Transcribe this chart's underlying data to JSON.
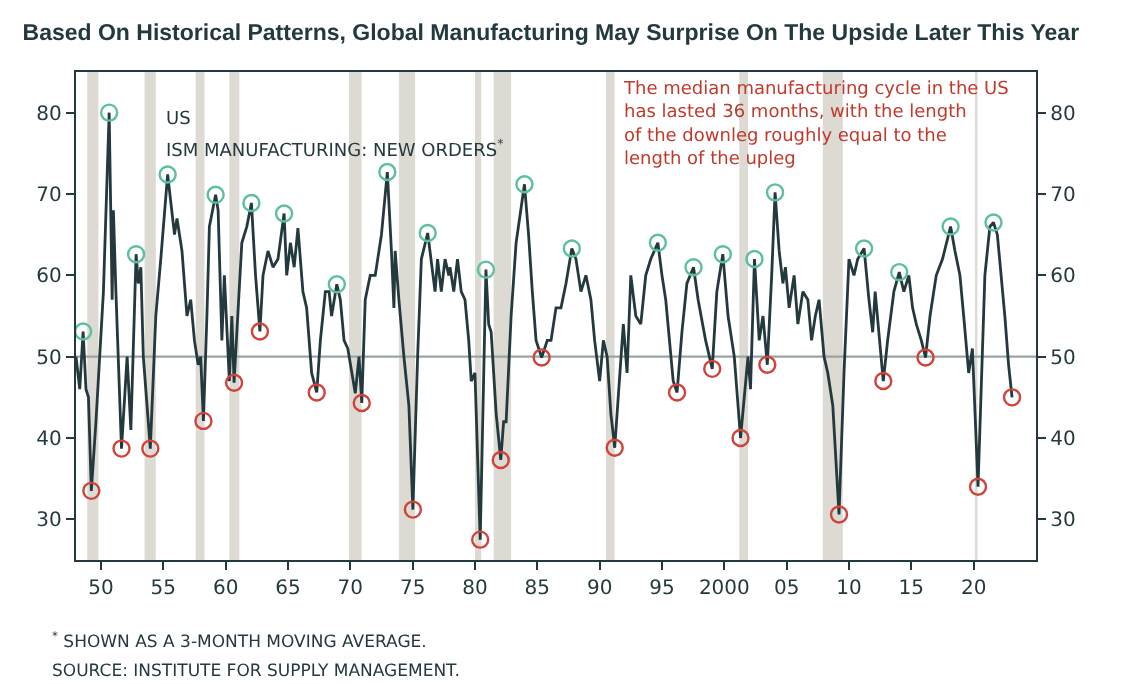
{
  "chart_data": {
    "type": "line",
    "title": "Based On Historical Patterns, Global Manufacturing May Surprise On The Upside Later This Year",
    "annotations": [
      "US",
      "ISM MANUFACTURING: NEW ORDERS$^{*}$",
      "The median manufacturing cycle in the US has lasted 36 months, with the length of the downleg roughly equal to the length of the upleg",
      "$^{*}$ SHOWN AS A 3-MONTH MOVING AVERAGE.",
      "SOURCE: INSTITUTE FOR SUPPLY MANAGEMENT."
    ],
    "xlim": [
      1948,
      2025
    ],
    "xticks": [
      {
        "value": 1950,
        "label": "50"
      },
      {
        "value": 1955,
        "label": "55"
      },
      {
        "value": 1960,
        "label": "60"
      },
      {
        "value": 1965,
        "label": "65"
      },
      {
        "value": 1970,
        "label": "70"
      },
      {
        "value": 1975,
        "label": "75"
      },
      {
        "value": 1980,
        "label": "80"
      },
      {
        "value": 1985,
        "label": "85"
      },
      {
        "value": 1990,
        "label": "90"
      },
      {
        "value": 1995,
        "label": "95"
      },
      2000,
      {
        "value": 2005,
        "label": "05"
      },
      {
        "value": 2010,
        "label": "10"
      },
      {
        "value": 2015,
        "label": "15"
      },
      {
        "value": 2020,
        "label": "20"
      }
    ],
    "ylim": [
      25,
      85
    ],
    "yticks": [
      30,
      40,
      50,
      60,
      70,
      80
    ],
    "y2lim": [
      25,
      85
    ],
    "y2ticks": [
      30,
      40,
      50,
      60,
      70,
      80
    ],
    "grid": false,
    "ref_lines": [
      {
        "axis": "y",
        "value": 50,
        "color": "#9aa5a5"
      }
    ],
    "bands": [
      {
        "axis": "x",
        "from": 1948.9,
        "to": 1949.8,
        "color": "#dcdad2"
      },
      {
        "axis": "x",
        "from": 1953.5,
        "to": 1954.4,
        "color": "#dcdad2"
      },
      {
        "axis": "x",
        "from": 1957.6,
        "to": 1958.3,
        "color": "#dcdad2"
      },
      {
        "axis": "x",
        "from": 1960.3,
        "to": 1961.1,
        "color": "#dcdad2"
      },
      {
        "axis": "x",
        "from": 1969.9,
        "to": 1970.9,
        "color": "#dcdad2"
      },
      {
        "axis": "x",
        "from": 1973.9,
        "to": 1975.2,
        "color": "#dcdad2"
      },
      {
        "axis": "x",
        "from": 1980.0,
        "to": 1980.5,
        "color": "#dcdad2"
      },
      {
        "axis": "x",
        "from": 1981.5,
        "to": 1982.9,
        "color": "#dcdad2"
      },
      {
        "axis": "x",
        "from": 1990.5,
        "to": 1991.2,
        "color": "#dcdad2"
      },
      {
        "axis": "x",
        "from": 2001.2,
        "to": 2001.9,
        "color": "#dcdad2"
      },
      {
        "axis": "x",
        "from": 2007.9,
        "to": 2009.5,
        "color": "#dcdad2"
      },
      {
        "axis": "x",
        "from": 2020.1,
        "to": 2020.3,
        "color": "#dcdad2"
      }
    ],
    "series": [
      {
        "color": "#24393e",
        "marker": "none",
        "line_style": "solid",
        "x": [
          1948.0,
          1948.3,
          1948.57,
          1948.8,
          1949.0,
          1949.23,
          1949.6,
          1950.2,
          1950.66,
          1950.9,
          1951.0,
          1951.2,
          1951.65,
          1952.1,
          1952.4,
          1952.82,
          1953.0,
          1953.2,
          1953.4,
          1953.96,
          1954.4,
          1954.8,
          1955.35,
          1955.9,
          1956.1,
          1956.5,
          1956.9,
          1957.2,
          1957.5,
          1957.8,
          1958.0,
          1958.22,
          1958.5,
          1958.7,
          1959.2,
          1959.4,
          1959.7,
          1959.9,
          1960.3,
          1960.5,
          1960.68,
          1960.9,
          1961.3,
          1961.7,
          1962.07,
          1962.4,
          1962.75,
          1963.0,
          1963.4,
          1963.8,
          1964.2,
          1964.69,
          1964.9,
          1965.2,
          1965.5,
          1965.8,
          1966.2,
          1966.5,
          1966.9,
          1967.31,
          1967.6,
          1968.0,
          1968.3,
          1968.5,
          1968.92,
          1969.2,
          1969.5,
          1969.8,
          1970.4,
          1970.7,
          1970.92,
          1971.2,
          1971.6,
          1972.0,
          1972.5,
          1972.97,
          1973.3,
          1973.5,
          1973.6,
          1973.9,
          1974.3,
          1974.7,
          1975.02,
          1975.4,
          1975.7,
          1976.21,
          1976.8,
          1977.0,
          1977.3,
          1977.6,
          1977.9,
          1978.0,
          1978.3,
          1978.6,
          1978.9,
          1979.2,
          1979.5,
          1979.7,
          1980.0,
          1980.42,
          1980.88,
          1981.1,
          1981.3,
          1981.7,
          1982.07,
          1982.3,
          1982.5,
          1982.9,
          1983.3,
          1983.97,
          1984.3,
          1984.6,
          1984.9,
          1985.35,
          1985.8,
          1986.1,
          1986.5,
          1986.9,
          1987.3,
          1987.77,
          1988.1,
          1988.5,
          1988.9,
          1989.3,
          1989.6,
          1990.0,
          1990.3,
          1990.6,
          1990.9,
          1991.21,
          1991.9,
          1992.2,
          1992.5,
          1992.9,
          1993.3,
          1993.7,
          1994.1,
          1994.67,
          1995.0,
          1995.3,
          1995.6,
          1995.9,
          1996.21,
          1996.6,
          1997.0,
          1997.53,
          1997.9,
          1998.5,
          1999.03,
          1999.4,
          1999.88,
          2000.3,
          2000.8,
          2001.3,
          2001.9,
          2002.1,
          2002.42,
          2002.8,
          2003.1,
          2003.45,
          2003.8,
          2004.07,
          2004.4,
          2004.7,
          2004.9,
          2005.2,
          2005.6,
          2005.9,
          2006.3,
          2006.7,
          2007.0,
          2007.3,
          2007.6,
          2008.0,
          2008.3,
          2008.7,
          2009.2,
          2009.6,
          2010.0,
          2010.4,
          2010.7,
          2011.21,
          2011.6,
          2011.9,
          2012.1,
          2012.75,
          2013.1,
          2013.6,
          2014.03,
          2014.4,
          2014.8,
          2015.1,
          2015.4,
          2015.8,
          2016.14,
          2016.5,
          2017.0,
          2017.5,
          2018.15,
          2018.5,
          2018.9,
          2019.2,
          2019.6,
          2019.9,
          2020.35,
          2020.9,
          2021.3,
          2021.59,
          2021.9,
          2022.2,
          2022.5,
          2022.8,
          2023.08
        ],
        "values": [
          50,
          46,
          53.1,
          46,
          45,
          33.5,
          42,
          58,
          80,
          57,
          68,
          58,
          38.7,
          50,
          41,
          62.6,
          59,
          61,
          50,
          38.7,
          55,
          62,
          72.4,
          65,
          67,
          63,
          55,
          57,
          52,
          49,
          50,
          42.1,
          55,
          66,
          69.9,
          68,
          52,
          60,
          47,
          55,
          46.8,
          53,
          64,
          66,
          68.9,
          60,
          53.1,
          60,
          63,
          61,
          62,
          67.6,
          60,
          64,
          61,
          65.8,
          58,
          56,
          48,
          45.6,
          52,
          58,
          58,
          55,
          58.9,
          57,
          52,
          51,
          45.5,
          50,
          44.3,
          57,
          60,
          60,
          65,
          72.7,
          63,
          56,
          63,
          57,
          50,
          44,
          31.2,
          50,
          62,
          65.2,
          58,
          62,
          58,
          62,
          60,
          61,
          58,
          62,
          58,
          57,
          52,
          47,
          48,
          27.5,
          60.7,
          54,
          53,
          43,
          37.3,
          42,
          42,
          55,
          64,
          71.2,
          65,
          58,
          52,
          49.9,
          52,
          52,
          56,
          56,
          59,
          63.3,
          62,
          58,
          60,
          57,
          52,
          47,
          52,
          50,
          43,
          38.8,
          54,
          48,
          60,
          55,
          54,
          60,
          62,
          64,
          60,
          57,
          52,
          47,
          45.6,
          53,
          59,
          61,
          57,
          52,
          48.5,
          58,
          62.6,
          55,
          50,
          40,
          50,
          46,
          62,
          52,
          55,
          49,
          60,
          70.2,
          63,
          59,
          61,
          56,
          60,
          54,
          58,
          57,
          52,
          55,
          57,
          50,
          48,
          44,
          30.6,
          48,
          62,
          60,
          62,
          63.3,
          57,
          53,
          58,
          47,
          52,
          58,
          60.4,
          58,
          60,
          56,
          54,
          52,
          49.9,
          55,
          60,
          62,
          66,
          63,
          60,
          55,
          48,
          51,
          34,
          60,
          66,
          66.5,
          65,
          60,
          55,
          49,
          45
        ]
      },
      {
        "type": "scatter",
        "color": "#5cbf9e",
        "marker": "circle",
        "x": [
          1948.57,
          1950.66,
          1952.82,
          1955.35,
          1959.2,
          1962.07,
          1964.69,
          1968.92,
          1972.97,
          1976.21,
          1980.88,
          1983.97,
          1987.77,
          1994.67,
          1997.53,
          1999.88,
          2002.42,
          2004.07,
          2011.21,
          2014.03,
          2018.15,
          2021.59
        ],
        "values": [
          53.1,
          80,
          62.6,
          72.4,
          69.9,
          68.9,
          67.6,
          58.9,
          72.7,
          65.2,
          60.7,
          71.2,
          63.3,
          64,
          61,
          62.6,
          62,
          70.2,
          63.3,
          60.4,
          66,
          66.5
        ]
      },
      {
        "type": "scatter",
        "color": "#d0423a",
        "marker": "circle",
        "x": [
          1949.23,
          1951.65,
          1953.96,
          1958.22,
          1960.68,
          1962.75,
          1967.31,
          1970.92,
          1975.02,
          1980.42,
          1982.07,
          1985.35,
          1991.21,
          1996.21,
          1999.03,
          2001.3,
          2003.45,
          2009.2,
          2012.75,
          2016.14,
          2020.35,
          2023.08
        ],
        "values": [
          33.5,
          38.7,
          38.7,
          42.1,
          46.8,
          53.1,
          45.6,
          44.3,
          31.2,
          27.5,
          37.3,
          49.9,
          38.8,
          45.6,
          48.5,
          40,
          49,
          30.6,
          47,
          49.9,
          34,
          45
        ]
      }
    ]
  }
}
